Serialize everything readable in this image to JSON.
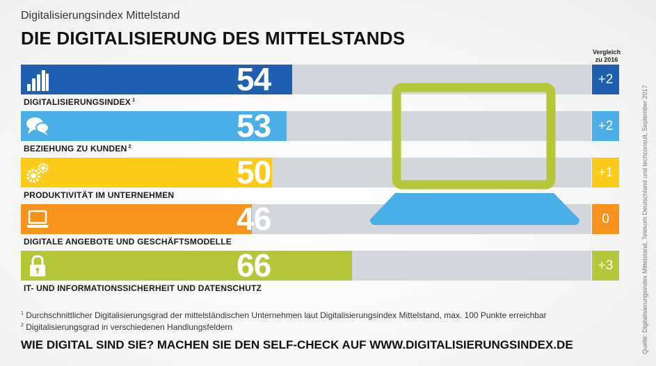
{
  "header": {
    "subtitle": "Digitalisierungsindex Mittelstand",
    "title": "DIE DIGITALISIERUNG DES MITTELSTANDS"
  },
  "comparison_header": {
    "line1": "Vergleich",
    "line2": "zu 2016"
  },
  "chart_data": {
    "type": "bar",
    "orientation": "horizontal",
    "categories": [
      "DIGITALISIERUNGSINDEX",
      "BEZIEHUNG ZU KUNDEN",
      "PRODUKTIVITÄT IM UNTERNEHMEN",
      "DIGITALE ANGEBOTE UND GESCHÄFTSMODELLE",
      "IT- UND INFORMATIONSSICHERHEIT UND DATENSCHUTZ"
    ],
    "values": [
      54,
      53,
      50,
      46,
      66
    ],
    "comparison_to_2016": [
      "+2",
      "+2",
      "+1",
      "0",
      "+3"
    ],
    "xlim": [
      0,
      100
    ],
    "grid": false,
    "legend": "none"
  },
  "rows": [
    {
      "label": "DIGITALISIERUNGSINDEX",
      "sup": "1",
      "value": "54",
      "delta": "+2",
      "color": "#1f5fb0",
      "delta_color": "#1f5fb0",
      "icon": "bar-chart-icon"
    },
    {
      "label": "BEZIEHUNG ZU KUNDEN",
      "sup": "2",
      "value": "53",
      "delta": "+2",
      "color": "#4aaee7",
      "delta_color": "#4aaee7",
      "icon": "speech-bubbles-icon"
    },
    {
      "label": "PRODUKTIVITÄT IM UNTERNEHMEN",
      "sup": "",
      "value": "50",
      "delta": "+1",
      "color": "#fbcb17",
      "delta_color": "#fbcb17",
      "icon": "gears-icon"
    },
    {
      "label": "DIGITALE ANGEBOTE UND GESCHÄFTSMODELLE",
      "sup": "",
      "value": "46",
      "delta": "0",
      "color": "#f7931d",
      "delta_color": "#f7931d",
      "icon": "laptop-icon"
    },
    {
      "label": "IT- UND INFORMATIONSSICHERHEIT UND DATENSCHUTZ",
      "sup": "",
      "value": "66",
      "delta": "+3",
      "color": "#b5c739",
      "delta_color": "#b5c739",
      "icon": "padlock-icon"
    }
  ],
  "illustration": {
    "screen_color": "#b5c739",
    "base_color": "#4aaee7"
  },
  "footnotes": [
    {
      "sup": "1",
      "text": "Durchschnittlicher Digitalisierungsgrad der mittelständischen Unternehmen laut Digitalisierungsindex Mittelstand, max. 100 Punkte erreichbar"
    },
    {
      "sup": "2",
      "text": "Digitalisierungsgrad in verschiedenen Handlungsfeldern"
    }
  ],
  "cta": "WIE DIGITAL SIND SIE? MACHEN SIE DEN SELF-CHECK AUF WWW.DIGITALISIERUNGSINDEX.DE",
  "source": "Quelle: Digitalisierungsindex Mittelstand, Telekom Deutschland und techconsult, September 2017"
}
